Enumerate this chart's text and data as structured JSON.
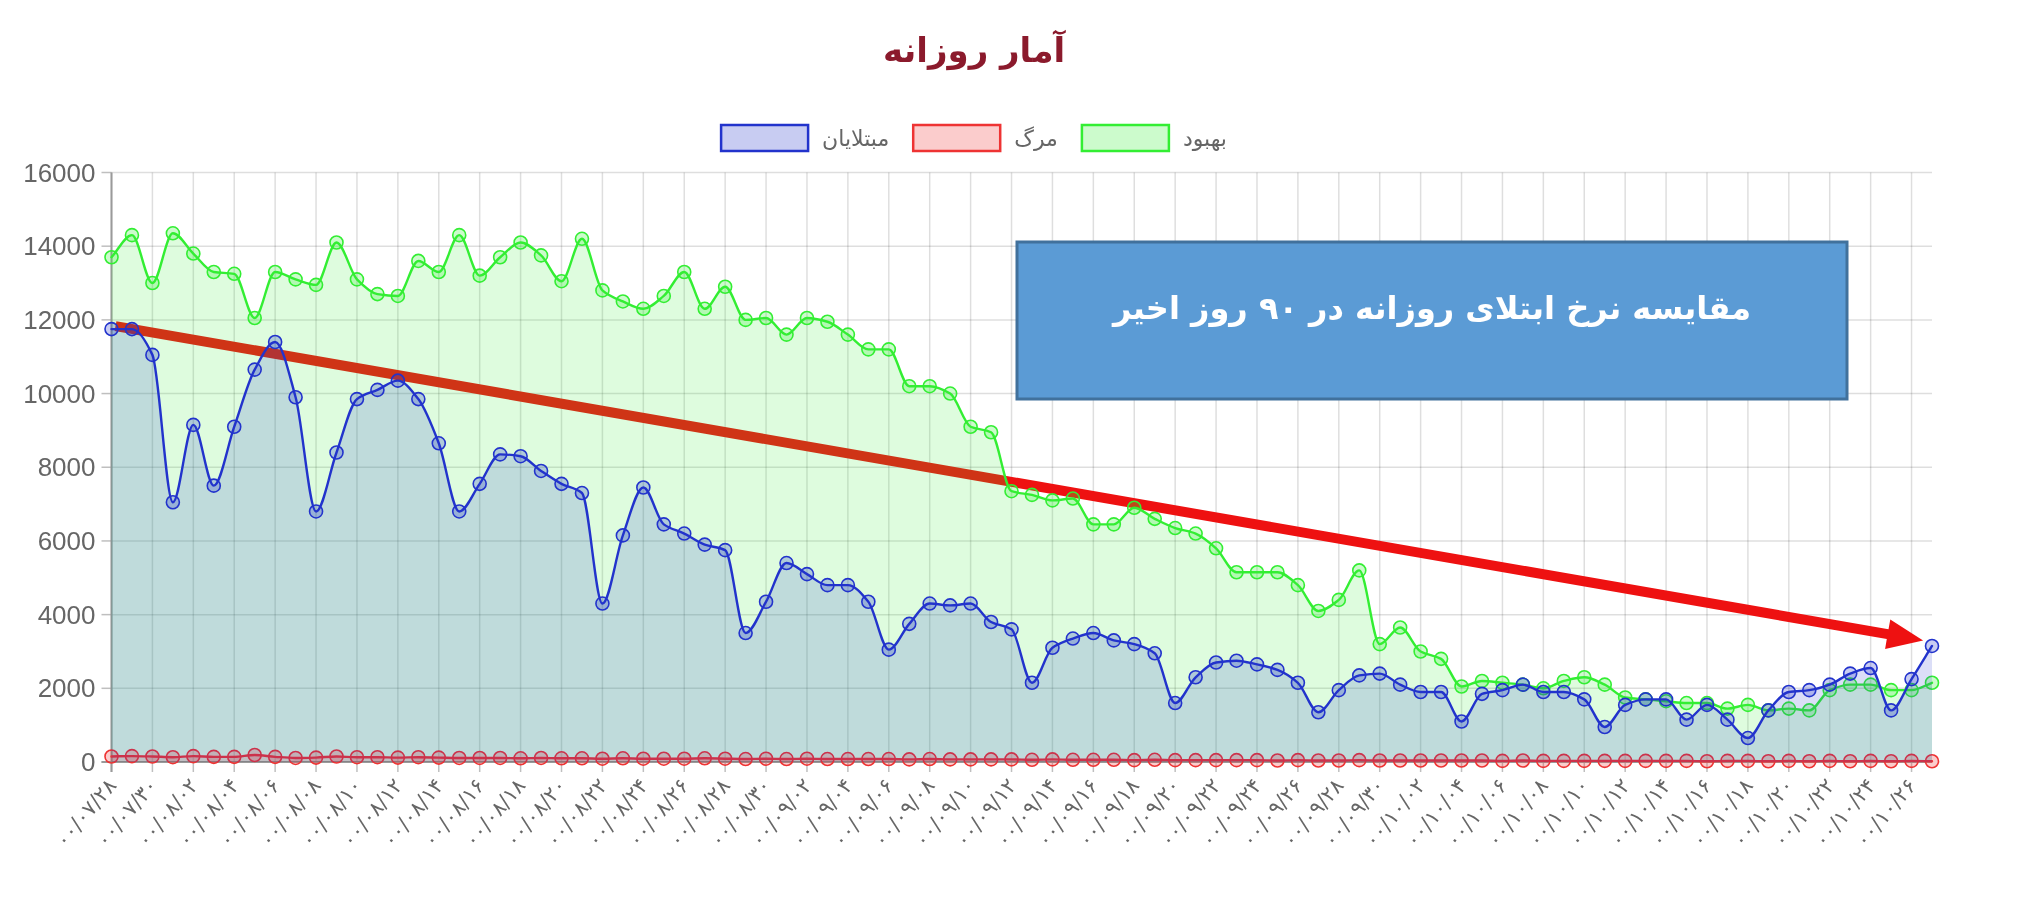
{
  "chart_data": {
    "type": "area",
    "title": "آمار روزانه",
    "annotations": [
      "مقایسه نرخ ابتلای روزانه در ۹۰ روز اخیر"
    ],
    "categories": [
      "۰۰/۰۷/۲۸",
      null,
      "۰۰/۰۷/۳۰",
      null,
      "۰۰/۰۸/۰۲",
      null,
      "۰۰/۰۸/۰۴",
      null,
      "۰۰/۰۸/۰۶",
      null,
      "۰۰/۰۸/۰۸",
      null,
      "۰۰/۰۸/۱۰",
      null,
      "۰۰/۰۸/۱۲",
      null,
      "۰۰/۰۸/۱۴",
      null,
      "۰۰/۰۸/۱۶",
      null,
      "۰۰/۰۸/۱۸",
      null,
      "۰۰/۰۸/۲۰",
      null,
      "۰۰/۰۸/۲۲",
      null,
      "۰۰/۰۸/۲۴",
      null,
      "۰۰/۰۸/۲۶",
      null,
      "۰۰/۰۸/۲۸",
      null,
      "۰۰/۰۸/۳۰",
      null,
      "۰۰/۰۹/۰۲",
      null,
      "۰۰/۰۹/۰۴",
      null,
      "۰۰/۰۹/۰۶",
      null,
      "۰۰/۰۹/۰۸",
      null,
      "۰۰/۰۹/۱۰",
      null,
      "۰۰/۰۹/۱۲",
      null,
      "۰۰/۰۹/۱۴",
      null,
      "۰۰/۰۹/۱۶",
      null,
      "۰۰/۰۹/۱۸",
      null,
      "۰۰/۰۹/۲۰",
      null,
      "۰۰/۰۹/۲۲",
      null,
      "۰۰/۰۹/۲۴",
      null,
      "۰۰/۰۹/۲۶",
      null,
      "۰۰/۰۹/۲۸",
      null,
      "۰۰/۰۹/۳۰",
      null,
      "۰۰/۱۰/۰۲",
      null,
      "۰۰/۱۰/۰۴",
      null,
      "۰۰/۱۰/۰۶",
      null,
      "۰۰/۱۰/۰۸",
      null,
      "۰۰/۱۰/۱۰",
      null,
      "۰۰/۱۰/۱۲",
      null,
      "۰۰/۱۰/۱۴",
      null,
      "۰۰/۱۰/۱۶",
      null,
      "۰۰/۱۰/۱۸",
      null,
      "۰۰/۱۰/۲۰",
      null,
      "۰۰/۱۰/۲۲",
      null,
      "۰۰/۱۰/۲۴",
      null,
      "۰۰/۱۰/۲۶",
      null
    ],
    "series": [
      {
        "name": "مبتلایان",
        "color": "#2233cc",
        "values": [
          11750,
          11750,
          11050,
          7050,
          9150,
          7500,
          9100,
          10650,
          11400,
          9900,
          6800,
          8400,
          9850,
          10100,
          10350,
          9850,
          8650,
          6800,
          7550,
          8350,
          8300,
          7900,
          7550,
          7300,
          4300,
          6150,
          7450,
          6450,
          6200,
          5900,
          5750,
          3500,
          4350,
          5400,
          5100,
          4800,
          4800,
          4350,
          3050,
          3750,
          4300,
          4250,
          4300,
          3800,
          3600,
          2150,
          3100,
          3350,
          3500,
          3300,
          3200,
          2950,
          1600,
          2300,
          2700,
          2750,
          2650,
          2500,
          2150,
          1350,
          1950,
          2350,
          2400,
          2100,
          1900,
          1900,
          1100,
          1850,
          1950,
          2100,
          1900,
          1900,
          1700,
          950,
          1550,
          1700,
          1700,
          1150,
          1550,
          1150,
          650,
          1400,
          1900,
          1950,
          2100,
          2400,
          2550,
          1400,
          2250,
          3150
        ]
      },
      {
        "name": "مرگ",
        "color": "#ee3333",
        "values": [
          150,
          160,
          150,
          130,
          160,
          140,
          140,
          190,
          140,
          110,
          120,
          150,
          130,
          130,
          120,
          130,
          120,
          110,
          110,
          110,
          100,
          110,
          100,
          100,
          90,
          100,
          90,
          90,
          90,
          100,
          90,
          80,
          90,
          80,
          90,
          80,
          80,
          80,
          80,
          70,
          80,
          70,
          70,
          70,
          70,
          60,
          70,
          60,
          60,
          60,
          50,
          60,
          50,
          50,
          50,
          50,
          50,
          40,
          50,
          40,
          40,
          50,
          40,
          40,
          40,
          40,
          40,
          40,
          30,
          40,
          30,
          30,
          30,
          30,
          30,
          30,
          30,
          30,
          20,
          30,
          30,
          20,
          30,
          20,
          30,
          20,
          30,
          20,
          30,
          20
        ]
      },
      {
        "name": "بهبود",
        "color": "#33ee33",
        "values": [
          13700,
          14300,
          13000,
          14350,
          13800,
          13300,
          13250,
          12050,
          13300,
          13100,
          12950,
          14100,
          13100,
          12700,
          12650,
          13600,
          13300,
          14300,
          13200,
          13700,
          14100,
          13750,
          13050,
          14200,
          12800,
          12500,
          12300,
          12650,
          13300,
          12300,
          12900,
          12000,
          12050,
          11600,
          12050,
          11950,
          11600,
          11200,
          11200,
          10200,
          10200,
          10000,
          9100,
          8950,
          7350,
          7250,
          7100,
          7150,
          6450,
          6450,
          6900,
          6600,
          6350,
          6200,
          5800,
          5150,
          5150,
          5150,
          4800,
          4100,
          4400,
          5200,
          3200,
          3650,
          3000,
          2800,
          2050,
          2200,
          2150,
          2100,
          2000,
          2200,
          2300,
          2100,
          1750,
          1700,
          1650,
          1600,
          1600,
          1450,
          1550,
          1400,
          1450,
          1400,
          1950,
          2100,
          2100,
          1950,
          1950,
          2150
        ]
      }
    ],
    "ylim": [
      0,
      16000
    ],
    "yticks": [
      0,
      2000,
      4000,
      6000,
      8000,
      10000,
      12000,
      14000,
      16000
    ],
    "grid": true,
    "legend": "top",
    "marker": "circle"
  }
}
